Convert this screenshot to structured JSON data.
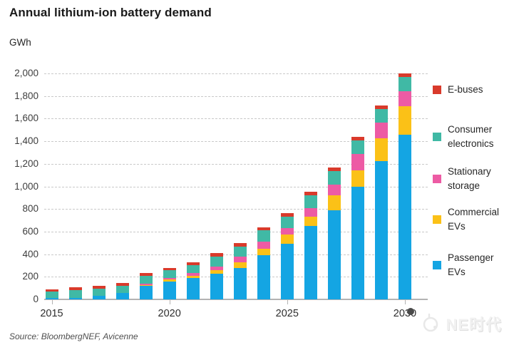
{
  "title": "Annual lithium-ion battery demand",
  "axis": {
    "unit_label": "GWh",
    "y_ticks": [
      "0",
      "200",
      "400",
      "600",
      "800",
      "1,000",
      "1,200",
      "1,400",
      "1,600",
      "1,800",
      "2,000"
    ],
    "x_ticks": [
      {
        "label": "2015",
        "bar_index": 0
      },
      {
        "label": "2020",
        "bar_index": 5
      },
      {
        "label": "2025",
        "bar_index": 10
      },
      {
        "label": "2030",
        "bar_index": 15
      }
    ]
  },
  "legend": [
    {
      "label": "E-buses",
      "color": "#d93a2b"
    },
    {
      "label": "Consumer\nelectronics",
      "color": "#40b9a5"
    },
    {
      "label": "Stationary\nstorage",
      "color": "#ed5ba4"
    },
    {
      "label": "Commercial\nEVs",
      "color": "#fbc117"
    },
    {
      "label": "Passenger\nEVs",
      "color": "#14a5e3"
    }
  ],
  "chart_data": {
    "type": "bar",
    "stacked": true,
    "title": "Annual lithium-ion battery demand",
    "ylabel": "GWh",
    "ylim": [
      0,
      2000
    ],
    "grid": "dashed-horizontal",
    "legend_position": "right",
    "categories": [
      2015,
      2016,
      2017,
      2018,
      2019,
      2020,
      2021,
      2022,
      2023,
      2024,
      2025,
      2026,
      2027,
      2028,
      2029,
      2030
    ],
    "series": [
      {
        "name": "Passenger EVs",
        "color": "#14a5e3",
        "values": [
          10,
          15,
          35,
          55,
          120,
          160,
          190,
          225,
          275,
          390,
          495,
          650,
          790,
          1000,
          1225,
          1460
        ]
      },
      {
        "name": "Commercial EVs",
        "color": "#fbc117",
        "values": [
          0,
          0,
          0,
          0,
          5,
          15,
          20,
          35,
          55,
          60,
          80,
          80,
          130,
          145,
          200,
          250
        ]
      },
      {
        "name": "Stationary storage",
        "color": "#ed5ba4",
        "values": [
          0,
          0,
          0,
          5,
          15,
          15,
          25,
          30,
          50,
          60,
          55,
          75,
          95,
          140,
          140,
          130
        ]
      },
      {
        "name": "Consumer electronics",
        "color": "#40b9a5",
        "values": [
          60,
          70,
          60,
          60,
          70,
          70,
          70,
          90,
          90,
          105,
          100,
          115,
          120,
          125,
          120,
          130
        ]
      },
      {
        "name": "E-buses",
        "color": "#d93a2b",
        "values": [
          20,
          25,
          25,
          25,
          25,
          20,
          25,
          30,
          30,
          20,
          30,
          30,
          30,
          30,
          30,
          30
        ]
      }
    ],
    "totals": [
      90,
      110,
      120,
      145,
      235,
      280,
      330,
      410,
      500,
      635,
      760,
      950,
      1165,
      1440,
      1715,
      2000
    ]
  },
  "source": "Source: BloombergNEF, Avicenne",
  "watermark": {
    "text": "NE时代"
  }
}
